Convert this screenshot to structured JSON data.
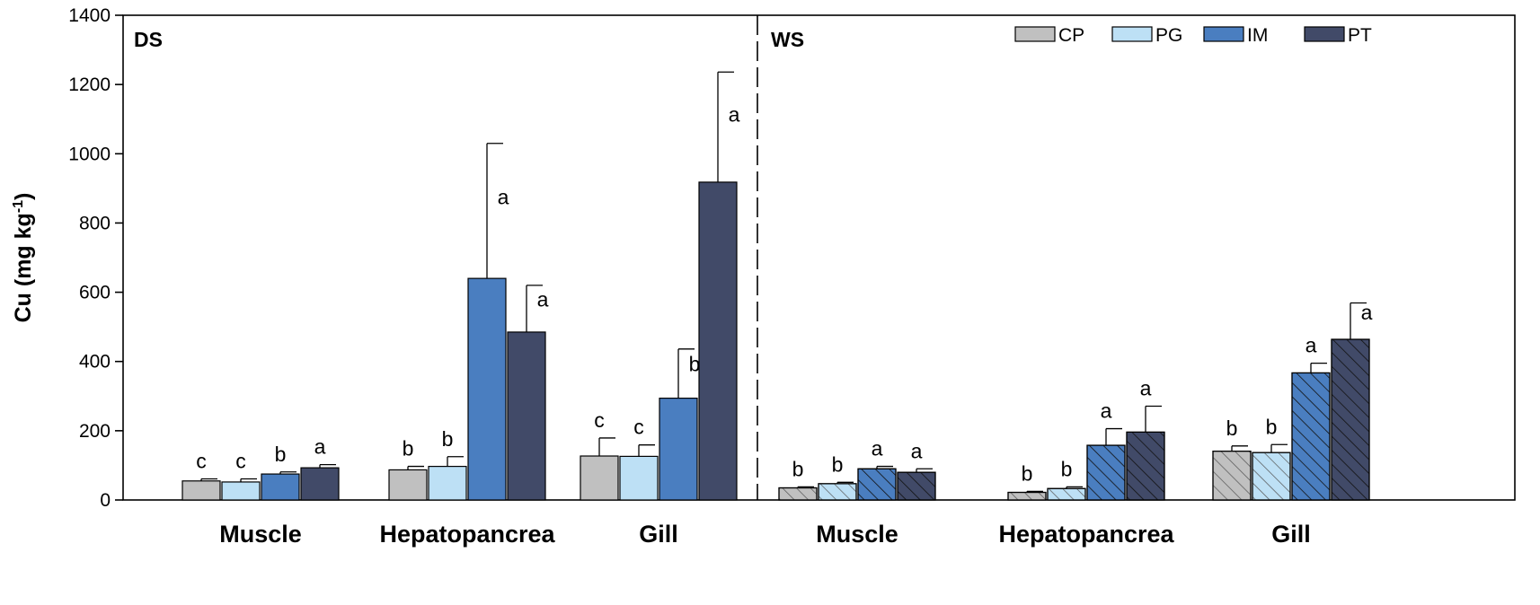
{
  "chart_data": {
    "type": "bar",
    "ylabel": "Cu (mg kg",
    "ylabel_sup": "-1",
    "ylabel_close": ")",
    "ylim": [
      0,
      1400
    ],
    "yticks": [
      0,
      200,
      400,
      600,
      800,
      1000,
      1200,
      1400
    ],
    "grid": false,
    "legend_position": "top-right",
    "series_names": [
      "CP",
      "PG",
      "IM",
      "PT"
    ],
    "colors": {
      "CP": "#c0c0c0",
      "PG": "#bde0f5",
      "IM": "#4a7ec0",
      "PT": "#414a68"
    },
    "panels": [
      {
        "label": "DS",
        "hatched": false,
        "groups": [
          {
            "category": "Muscle",
            "values": [
              55,
              52,
              75,
              93
            ],
            "errors": [
              6,
              9,
              6,
              9
            ],
            "letters": [
              "c",
              "c",
              "b",
              "a"
            ]
          },
          {
            "category": "Hepatopancrea",
            "values": [
              87,
              97,
              640,
              485
            ],
            "errors": [
              10,
              28,
              390,
              135
            ],
            "letters": [
              "b",
              "b",
              "a",
              "a"
            ]
          },
          {
            "category": "Gill",
            "values": [
              127,
              126,
              294,
              918
            ],
            "errors": [
              52,
              33,
              142,
              318
            ],
            "letters": [
              "c",
              "c",
              "b",
              "a"
            ]
          }
        ]
      },
      {
        "label": "WS",
        "hatched": true,
        "groups": [
          {
            "category": "Muscle",
            "values": [
              35,
              47,
              90,
              80
            ],
            "errors": [
              3,
              4,
              7,
              10
            ],
            "letters": [
              "b",
              "b",
              "a",
              "a"
            ]
          },
          {
            "category": "Hepatopancrea",
            "values": [
              22,
              33,
              158,
              196
            ],
            "errors": [
              3,
              5,
              48,
              75
            ],
            "letters": [
              "b",
              "b",
              "a",
              "a"
            ]
          },
          {
            "category": "Gill",
            "values": [
              141,
              137,
              367,
              464
            ],
            "errors": [
              15,
              23,
              28,
              105
            ],
            "letters": [
              "b",
              "b",
              "a",
              "a"
            ]
          }
        ]
      }
    ]
  }
}
